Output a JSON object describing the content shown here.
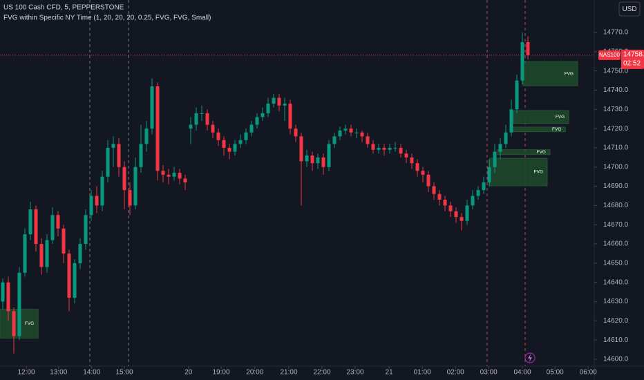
{
  "header": {
    "symbol": "US 100 Cash CFD, 5, PEPPERSTONE",
    "indicator": "FVG within Specific NY Time (1, 20, 20, 20, 0.25, FVG, FVG, Small)"
  },
  "currency": "USD",
  "chart_data": {
    "type": "candlestick",
    "x": [
      0,
      1,
      2,
      3,
      4,
      5,
      6,
      7,
      8,
      9,
      10,
      11,
      12,
      13,
      14,
      15,
      16,
      17,
      18,
      19,
      20,
      21,
      22,
      23,
      24,
      25,
      26,
      27,
      28,
      29,
      30,
      31,
      32,
      33,
      34,
      35,
      36,
      37,
      38,
      39,
      40,
      41,
      42,
      43,
      44,
      45,
      46,
      47,
      48,
      49,
      50,
      51,
      52,
      53,
      54,
      55,
      56,
      57,
      58,
      59,
      60,
      61,
      62,
      63,
      64,
      65,
      66,
      67,
      68,
      69,
      70,
      71,
      72,
      73,
      74,
      75,
      76,
      77,
      78,
      79,
      80,
      81,
      82,
      83,
      84,
      85,
      86,
      87,
      88,
      89,
      90,
      91,
      92,
      93,
      94,
      95
    ],
    "open": [
      14630,
      14640,
      14625,
      14612,
      14645,
      14665,
      14678,
      14660,
      14648,
      14662,
      14675,
      14668,
      14655,
      14632,
      14650,
      14660,
      14675,
      14685,
      14680,
      14695,
      14710,
      14712,
      14700,
      14688,
      14680,
      14700,
      14712,
      14720,
      14742,
      14698,
      14696,
      14695,
      14697,
      14694,
      14720,
      14722,
      14728,
      14728,
      14722,
      14718,
      14714,
      14710,
      14708,
      14712,
      14714,
      14718,
      14722,
      14726,
      14728,
      14733,
      14736,
      14732,
      14733,
      14720,
      14716,
      14703,
      14706,
      14702,
      14705,
      14700,
      14712,
      14716,
      14719,
      14720,
      14718,
      14718,
      14716,
      14712,
      14709,
      14710,
      14709,
      14710,
      14710,
      14707,
      14705,
      14702,
      14698,
      14696,
      14690,
      14686,
      14683,
      14680,
      14677,
      14674,
      14672,
      14680,
      14685,
      14688,
      14692,
      14700,
      14708,
      14712,
      14718,
      14730,
      14745,
      14765
    ],
    "high": [
      14642,
      14643,
      14627,
      14648,
      14668,
      14682,
      14680,
      14663,
      14665,
      14679,
      14677,
      14670,
      14657,
      14652,
      14663,
      14678,
      14688,
      14690,
      14698,
      14714,
      14716,
      14715,
      14703,
      14692,
      14705,
      14722,
      14724,
      14746,
      14744,
      14701,
      14699,
      14700,
      14699,
      14696,
      14726,
      14731,
      14732,
      14730,
      14724,
      14720,
      14716,
      14712,
      14714,
      14717,
      14720,
      14724,
      14728,
      14731,
      14736,
      14738,
      14738,
      14736,
      14735,
      14722,
      14718,
      14709,
      14708,
      14707,
      14707,
      14714,
      14718,
      14721,
      14722,
      14722,
      14720,
      14719,
      14718,
      14714,
      14712,
      14712,
      14712,
      14713,
      14712,
      14709,
      14707,
      14704,
      14700,
      14698,
      14692,
      14688,
      14685,
      14682,
      14679,
      14676,
      14683,
      14688,
      14690,
      14695,
      14704,
      14712,
      14715,
      14722,
      14735,
      14748,
      14770,
      14768
    ],
    "low": [
      14626,
      14620,
      14603,
      14610,
      14643,
      14662,
      14656,
      14644,
      14645,
      14660,
      14664,
      14650,
      14625,
      14629,
      14647,
      14657,
      14672,
      14676,
      14677,
      14692,
      14700,
      14695,
      14678,
      14675,
      14678,
      14697,
      14708,
      14717,
      14693,
      14692,
      14691,
      14693,
      14691,
      14688,
      14712,
      14719,
      14724,
      14719,
      14715,
      14711,
      14706,
      14704,
      14706,
      14710,
      14712,
      14716,
      14720,
      14724,
      14726,
      14731,
      14729,
      14724,
      14717,
      14713,
      14680,
      14700,
      14698,
      14699,
      14696,
      14698,
      14710,
      14714,
      14717,
      14716,
      14715,
      14713,
      14710,
      14707,
      14707,
      14706,
      14707,
      14708,
      14705,
      14702,
      14699,
      14695,
      14692,
      14687,
      14683,
      14680,
      14677,
      14674,
      14671,
      14667,
      14670,
      14678,
      14683,
      14686,
      14690,
      14697,
      14704,
      14710,
      14716,
      14728,
      14743,
      14756
    ],
    "close": [
      14640,
      14625,
      14612,
      14645,
      14665,
      14678,
      14660,
      14648,
      14662,
      14675,
      14668,
      14655,
      14632,
      14650,
      14660,
      14675,
      14685,
      14680,
      14695,
      14710,
      14712,
      14700,
      14688,
      14680,
      14700,
      14712,
      14720,
      14742,
      14698,
      14696,
      14695,
      14697,
      14694,
      14692,
      14722,
      14728,
      14728,
      14722,
      14718,
      14714,
      14710,
      14708,
      14712,
      14714,
      14718,
      14722,
      14726,
      14728,
      14733,
      14736,
      14732,
      14733,
      14720,
      14716,
      14703,
      14706,
      14702,
      14705,
      14700,
      14712,
      14716,
      14719,
      14720,
      14718,
      14718,
      14716,
      14712,
      14709,
      14710,
      14709,
      14710,
      14710,
      14707,
      14705,
      14702,
      14698,
      14696,
      14690,
      14686,
      14683,
      14680,
      14677,
      14674,
      14672,
      14680,
      14685,
      14688,
      14692,
      14700,
      14708,
      14712,
      14718,
      14730,
      14745,
      14765,
      14758.2
    ],
    "up_color": "#089981",
    "down_color": "#f23645",
    "xlim": [
      -0.5,
      107
    ],
    "xticks": [
      {
        "value": 4.25,
        "label": "12:00"
      },
      {
        "value": 10.1,
        "label": "13:00"
      },
      {
        "value": 16.1,
        "label": "14:00"
      },
      {
        "value": 22,
        "label": "15:00"
      },
      {
        "value": 33.6,
        "label": "20"
      },
      {
        "value": 39.5,
        "label": "19:00"
      },
      {
        "value": 45.6,
        "label": "20:00"
      },
      {
        "value": 51.75,
        "label": "21:00"
      },
      {
        "value": 57.75,
        "label": "22:00"
      },
      {
        "value": 63.75,
        "label": "23:00"
      },
      {
        "value": 69.9,
        "label": "21"
      },
      {
        "value": 75.9,
        "label": "01:00"
      },
      {
        "value": 81.9,
        "label": "02:00"
      },
      {
        "value": 87.9,
        "label": "03:00"
      },
      {
        "value": 94,
        "label": "04:00"
      },
      {
        "value": 99.9,
        "label": "05:00"
      },
      {
        "value": 105.9,
        "label": "06:00"
      }
    ],
    "ylim": [
      14596.4,
      14786.9
    ],
    "yticks": [
      {
        "value": 14600,
        "label": "14600.0"
      },
      {
        "value": 14610,
        "label": "14610.0"
      },
      {
        "value": 14620,
        "label": "14620.0"
      },
      {
        "value": 14630,
        "label": "14630.0"
      },
      {
        "value": 14640,
        "label": "14640.0"
      },
      {
        "value": 14650,
        "label": "14650.0"
      },
      {
        "value": 14660,
        "label": "14660.0"
      },
      {
        "value": 14670,
        "label": "14670.0"
      },
      {
        "value": 14680,
        "label": "14680.0"
      },
      {
        "value": 14690,
        "label": "14690.0"
      },
      {
        "value": 14700,
        "label": "14700.0"
      },
      {
        "value": 14710,
        "label": "14710.0"
      },
      {
        "value": 14720,
        "label": "14720.0"
      },
      {
        "value": 14730,
        "label": "14730.0"
      },
      {
        "value": 14740,
        "label": "14740.0"
      },
      {
        "value": 14750,
        "label": "14750.0"
      },
      {
        "value": 14760,
        "label": "14760.0"
      },
      {
        "value": 14770,
        "label": "14770.0"
      }
    ],
    "zone_color": "#1f4a2c",
    "zones": [
      {
        "label": "FVG",
        "top": 14626,
        "bottom": 14611,
        "start": -0.5,
        "end": 6.4
      },
      {
        "label": "FVG",
        "top": 14754.9,
        "bottom": 14742.3,
        "start": 94.1,
        "end": 104
      },
      {
        "label": "FVG",
        "top": 14729.4,
        "bottom": 14722.6,
        "start": 92.4,
        "end": 102.4
      },
      {
        "label": "FVG",
        "top": 14720.8,
        "bottom": 14718.3,
        "start": 92,
        "end": 101.8
      },
      {
        "label": "FVG",
        "top": 14709,
        "bottom": 14706.4,
        "start": 89.5,
        "end": 99
      },
      {
        "label": "FVG",
        "top": 14704.6,
        "bottom": 14690.2,
        "start": 88.1,
        "end": 98.5
      }
    ],
    "price_tag": "NAS100",
    "countdown": "02:52"
  }
}
